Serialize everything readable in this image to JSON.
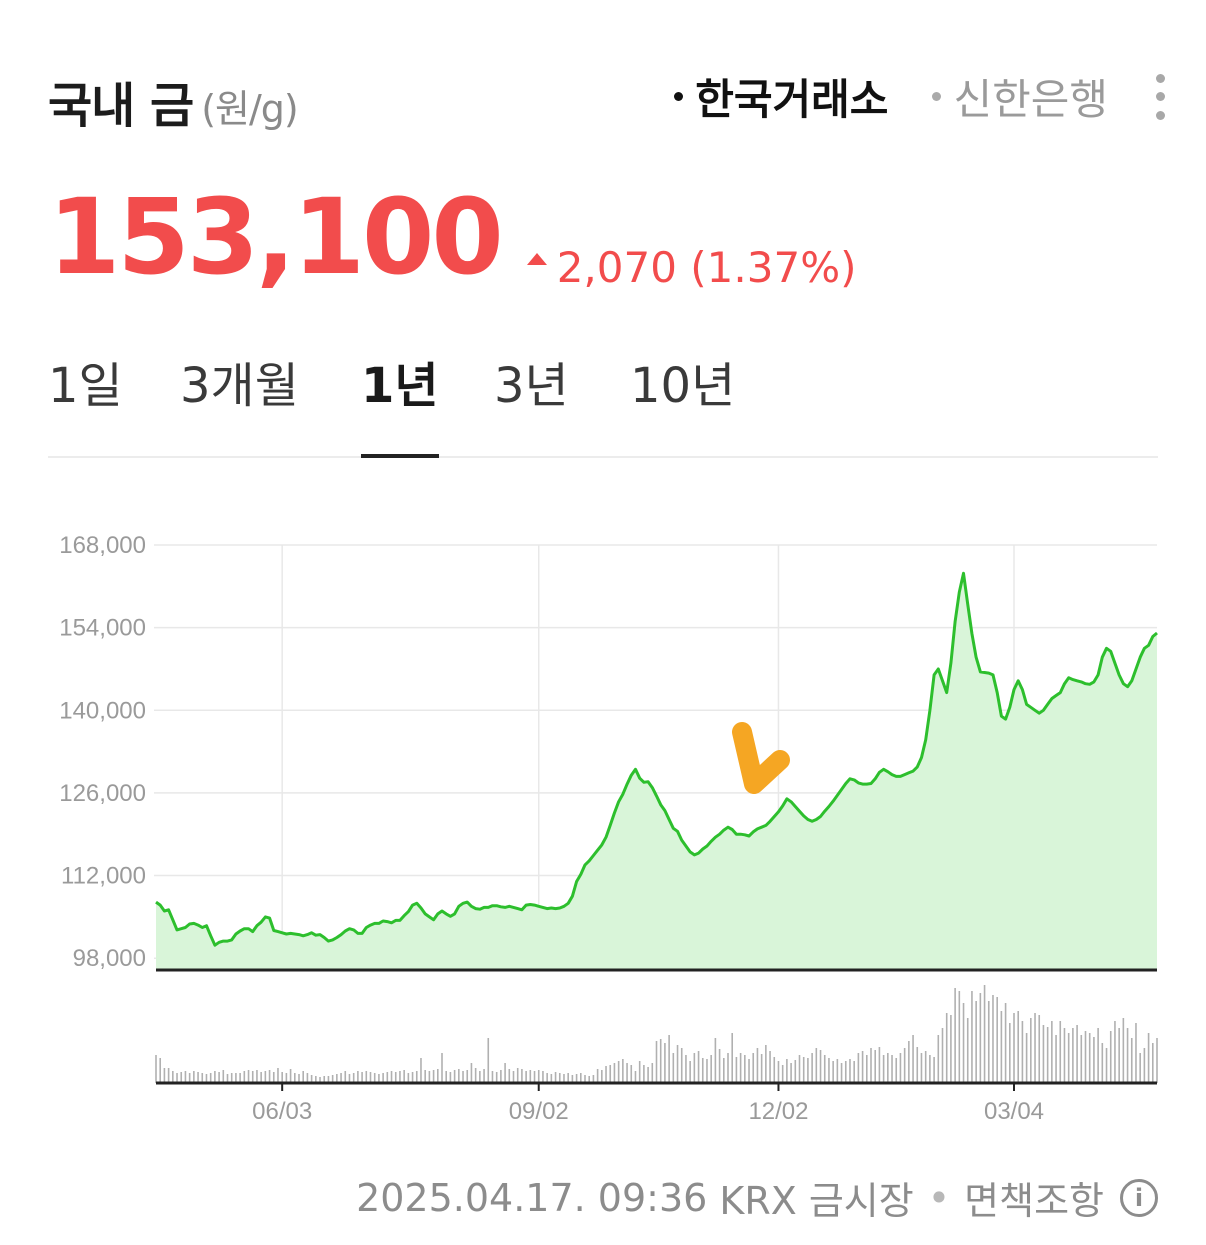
{
  "header": {
    "title": "국내 금",
    "unit": "(원/g)",
    "sources": [
      {
        "label": "한국거래소",
        "active": true
      },
      {
        "label": "신한은행",
        "active": false
      }
    ]
  },
  "price": {
    "value": "153,100",
    "change": "2,070",
    "change_pct": "(1.37%)",
    "color": "#f24c4c"
  },
  "periods": [
    {
      "label": "1일",
      "active": false
    },
    {
      "label": "3개월",
      "active": false
    },
    {
      "label": "1년",
      "active": true
    },
    {
      "label": "3년",
      "active": false
    },
    {
      "label": "10년",
      "active": false
    }
  ],
  "chart_data": {
    "type": "area",
    "y_tick_labels": [
      "168,000",
      "154,000",
      "140,000",
      "126,000",
      "112,000",
      "98,000"
    ],
    "y_ticks": [
      168000,
      154000,
      140000,
      126000,
      112000,
      98000
    ],
    "ylim": [
      96000,
      168000
    ],
    "x_tick_labels": [
      "06/03",
      "09/02",
      "12/02",
      "03/04"
    ],
    "x_tick_index": [
      30,
      91,
      148,
      204
    ],
    "line_color": "#2dbf2d",
    "fill_color": "#d9f5d9",
    "grid": true,
    "values": [
      107500,
      107000,
      106000,
      106200,
      104500,
      102800,
      103000,
      103200,
      103800,
      103900,
      103600,
      103200,
      103500,
      101800,
      100200,
      100700,
      100900,
      100900,
      101100,
      102100,
      102600,
      103000,
      103000,
      102500,
      103500,
      104100,
      105000,
      104800,
      102700,
      102500,
      102300,
      102100,
      102200,
      102100,
      102000,
      101800,
      102000,
      102300,
      101900,
      102000,
      101500,
      100900,
      101100,
      101500,
      102000,
      102600,
      103000,
      102800,
      102200,
      102200,
      103200,
      103600,
      103900,
      103900,
      104300,
      104200,
      104000,
      104400,
      104400,
      105200,
      105900,
      107000,
      107300,
      106500,
      105500,
      105000,
      104500,
      105500,
      106000,
      105500,
      105100,
      105500,
      106800,
      107300,
      107500,
      106800,
      106400,
      106300,
      106600,
      106600,
      106900,
      106900,
      106700,
      106600,
      106800,
      106600,
      106400,
      106200,
      107000,
      107100,
      107000,
      106800,
      106600,
      106400,
      106500,
      106400,
      106500,
      106800,
      107300,
      108500,
      111000,
      112200,
      113800,
      114500,
      115400,
      116300,
      117200,
      118500,
      120500,
      122600,
      124500,
      125800,
      127500,
      129000,
      130000,
      128500,
      127800,
      127900,
      126900,
      125500,
      124000,
      123000,
      121500,
      120000,
      119500,
      118000,
      117000,
      116000,
      115500,
      115800,
      116500,
      117000,
      117800,
      118500,
      119000,
      119700,
      120200,
      119800,
      119000,
      119000,
      118900,
      118700,
      119400,
      119900,
      120200,
      120500,
      121200,
      122000,
      122800,
      123800,
      125000,
      124500,
      123700,
      122900,
      122100,
      121500,
      121200,
      121500,
      122000,
      122900,
      123700,
      124600,
      125600,
      126600,
      127600,
      128400,
      128200,
      127700,
      127500,
      127500,
      127600,
      128400,
      129500,
      130000,
      129600,
      129100,
      128800,
      128800,
      129100,
      129400,
      129700,
      130400,
      132000,
      135000,
      140000,
      146000,
      147000,
      145000,
      143000,
      148000,
      155000,
      160000,
      163200,
      158000,
      153000,
      149000,
      146500,
      146400,
      146300,
      146000,
      143000,
      139000,
      138500,
      140500,
      143500,
      145000,
      143500,
      141000,
      140500,
      140000,
      139500,
      140000,
      141000,
      142000,
      142500,
      143000,
      144500,
      145500,
      145200,
      145000,
      144800,
      144500,
      144400,
      144800,
      146000,
      149000,
      150500,
      150000,
      148000,
      146000,
      144500,
      144000,
      145000,
      147000,
      149000,
      150500,
      151000,
      152500,
      153100
    ],
    "volume": [
      0.28,
      0.25,
      0.15,
      0.15,
      0.12,
      0.1,
      0.11,
      0.12,
      0.1,
      0.12,
      0.11,
      0.1,
      0.09,
      0.1,
      0.12,
      0.11,
      0.13,
      0.09,
      0.1,
      0.1,
      0.1,
      0.12,
      0.13,
      0.12,
      0.13,
      0.11,
      0.12,
      0.13,
      0.11,
      0.15,
      0.11,
      0.1,
      0.14,
      0.1,
      0.09,
      0.12,
      0.1,
      0.08,
      0.07,
      0.06,
      0.07,
      0.07,
      0.08,
      0.09,
      0.1,
      0.12,
      0.09,
      0.1,
      0.12,
      0.11,
      0.12,
      0.11,
      0.1,
      0.09,
      0.1,
      0.11,
      0.12,
      0.11,
      0.12,
      0.13,
      0.1,
      0.11,
      0.12,
      0.25,
      0.13,
      0.12,
      0.13,
      0.14,
      0.3,
      0.12,
      0.11,
      0.13,
      0.14,
      0.12,
      0.13,
      0.2,
      0.15,
      0.12,
      0.14,
      0.45,
      0.12,
      0.11,
      0.13,
      0.2,
      0.14,
      0.12,
      0.15,
      0.14,
      0.12,
      0.13,
      0.12,
      0.13,
      0.12,
      0.1,
      0.09,
      0.11,
      0.1,
      0.09,
      0.1,
      0.08,
      0.09,
      0.1,
      0.08,
      0.07,
      0.08,
      0.14,
      0.13,
      0.17,
      0.18,
      0.2,
      0.22,
      0.24,
      0.2,
      0.18,
      0.12,
      0.22,
      0.18,
      0.16,
      0.2,
      0.42,
      0.44,
      0.4,
      0.48,
      0.3,
      0.38,
      0.35,
      0.28,
      0.22,
      0.3,
      0.32,
      0.25,
      0.24,
      0.28,
      0.45,
      0.34,
      0.25,
      0.3,
      0.5,
      0.26,
      0.3,
      0.28,
      0.24,
      0.3,
      0.35,
      0.29,
      0.38,
      0.32,
      0.26,
      0.22,
      0.18,
      0.24,
      0.2,
      0.23,
      0.28,
      0.26,
      0.25,
      0.3,
      0.35,
      0.33,
      0.28,
      0.25,
      0.22,
      0.24,
      0.2,
      0.22,
      0.24,
      0.22,
      0.3,
      0.32,
      0.28,
      0.35,
      0.33,
      0.36,
      0.28,
      0.3,
      0.28,
      0.25,
      0.3,
      0.35,
      0.42,
      0.48,
      0.36,
      0.3,
      0.32,
      0.28,
      0.26,
      0.48,
      0.55,
      0.7,
      0.68,
      0.95,
      0.92,
      0.8,
      0.65,
      0.92,
      0.82,
      0.9,
      0.98,
      0.82,
      0.88,
      0.86,
      0.72,
      0.8,
      0.6,
      0.7,
      0.72,
      0.62,
      0.5,
      0.65,
      0.7,
      0.68,
      0.58,
      0.56,
      0.62,
      0.48,
      0.62,
      0.55,
      0.5,
      0.55,
      0.58,
      0.48,
      0.52,
      0.5,
      0.46,
      0.55,
      0.4,
      0.35,
      0.52,
      0.62,
      0.55,
      0.65,
      0.55,
      0.45,
      0.6,
      0.3,
      0.35,
      0.5,
      0.4,
      0.45
    ]
  },
  "footer": {
    "timestamp": "2025.04.17. 09:36",
    "market": "KRX 금시장",
    "disclaimer": "면책조항",
    "info": "i"
  }
}
